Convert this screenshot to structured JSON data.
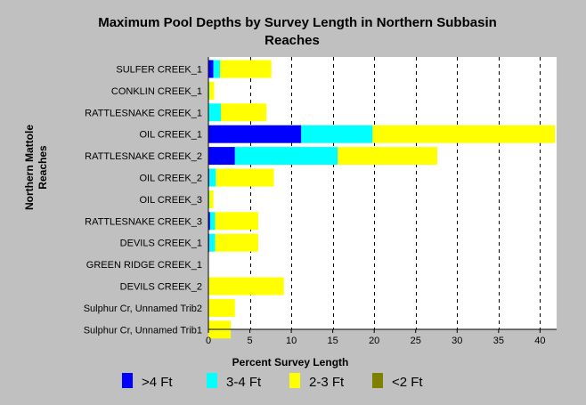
{
  "chart_data": {
    "type": "bar",
    "orientation": "horizontal",
    "stacked": true,
    "title": [
      "Maximum Pool Depths by Survey Length in Northern Subbasin",
      "Reaches"
    ],
    "xlabel": "Percent Survey Length",
    "ylabel": [
      "Northern Mattole",
      "Reaches"
    ],
    "xlim": [
      0,
      42
    ],
    "xticks": [
      0,
      5,
      10,
      15,
      20,
      25,
      30,
      35,
      40
    ],
    "grid": "vertical dashed",
    "legend_position": "bottom",
    "categories": [
      "SULFER CREEK_1",
      "CONKLIN CREEK_1",
      "RATTLESNAKE CREEK_1",
      "OIL CREEK_1",
      "RATTLESNAKE CREEK_2",
      "OIL CREEK_2",
      "OIL CREEK_3",
      "RATTLESNAKE CREEK_3",
      "DEVILS CREEK_1",
      "GREEN RIDGE CREEK_1",
      "DEVILS CREEK_2",
      "Sulphur Cr, Unnamed Trib2",
      "Sulphur Cr, Unnamed Trib1"
    ],
    "series": [
      {
        "name": ">4 Ft",
        "color": "#0000ff",
        "values": [
          0.6,
          0,
          0,
          11.2,
          3.2,
          0.1,
          0,
          0.2,
          0.1,
          0,
          0,
          0,
          0
        ]
      },
      {
        "name": "3-4 Ft",
        "color": "#00ffff",
        "values": [
          0.8,
          0.1,
          1.5,
          8.6,
          12.4,
          0.8,
          0.1,
          0.6,
          0.7,
          0,
          0,
          0,
          0
        ]
      },
      {
        "name": "2-3 Ft",
        "color": "#ffff00",
        "values": [
          6.2,
          0.6,
          5.5,
          22.0,
          12.0,
          7.0,
          0.5,
          5.2,
          5.2,
          0,
          9.1,
          3.2,
          2.7
        ]
      },
      {
        "name": "<2 Ft",
        "color": "#808000",
        "values": [
          0,
          0,
          0,
          0,
          0,
          0,
          0,
          0,
          0,
          0,
          0,
          0,
          0
        ]
      }
    ]
  }
}
